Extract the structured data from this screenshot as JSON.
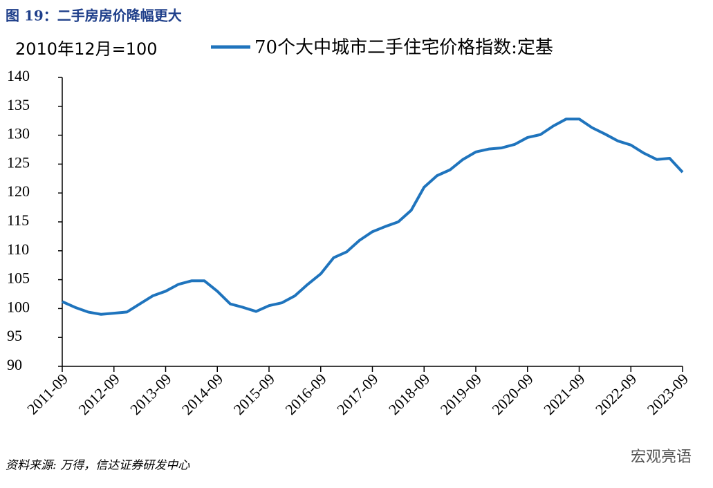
{
  "chart_data": {
    "type": "line",
    "title": "图 19：二手房房价降幅更大",
    "y_label": "2010年12月=100",
    "source": "资料来源: 万得，信达证券研发中心",
    "watermark": "宏观亮语",
    "x": [
      "2011-09",
      "2011-12",
      "2012-03",
      "2012-06",
      "2012-09",
      "2012-12",
      "2013-03",
      "2013-06",
      "2013-09",
      "2013-12",
      "2014-03",
      "2014-06",
      "2014-09",
      "2014-12",
      "2015-03",
      "2015-06",
      "2015-09",
      "2015-12",
      "2016-03",
      "2016-06",
      "2016-09",
      "2016-12",
      "2017-03",
      "2017-06",
      "2017-09",
      "2017-12",
      "2018-03",
      "2018-06",
      "2018-09",
      "2018-12",
      "2019-03",
      "2019-06",
      "2019-09",
      "2019-12",
      "2020-03",
      "2020-06",
      "2020-09",
      "2020-12",
      "2021-03",
      "2021-06",
      "2021-09",
      "2021-12",
      "2022-03",
      "2022-06",
      "2022-09",
      "2022-12",
      "2023-03",
      "2023-06",
      "2023-09"
    ],
    "series": [
      {
        "name": "70个大中城市二手住宅价格指数:定基",
        "color": "#1f74bd",
        "values": [
          101.2,
          100.2,
          99.4,
          99.0,
          99.2,
          99.4,
          100.8,
          102.2,
          103.0,
          104.2,
          104.8,
          104.8,
          103.0,
          100.8,
          100.2,
          99.5,
          100.5,
          101.0,
          102.2,
          104.2,
          106.0,
          108.8,
          109.8,
          111.8,
          113.3,
          114.2,
          115.0,
          117.0,
          121.0,
          123.0,
          124.0,
          125.8,
          127.1,
          127.6,
          127.8,
          128.4,
          129.6,
          130.1,
          131.6,
          132.8,
          132.8,
          131.3,
          130.2,
          129.0,
          128.3,
          126.9,
          125.8,
          126.0,
          123.6
        ]
      }
    ],
    "xticks": [
      "2011-09",
      "2012-09",
      "2013-09",
      "2014-09",
      "2015-09",
      "2016-09",
      "2017-09",
      "2018-09",
      "2019-09",
      "2020-09",
      "2021-09",
      "2022-09",
      "2023-09"
    ],
    "ylim": [
      90,
      140
    ],
    "yticks": [
      90,
      95,
      100,
      105,
      110,
      115,
      120,
      125,
      130,
      135,
      140
    ],
    "grid": false
  }
}
